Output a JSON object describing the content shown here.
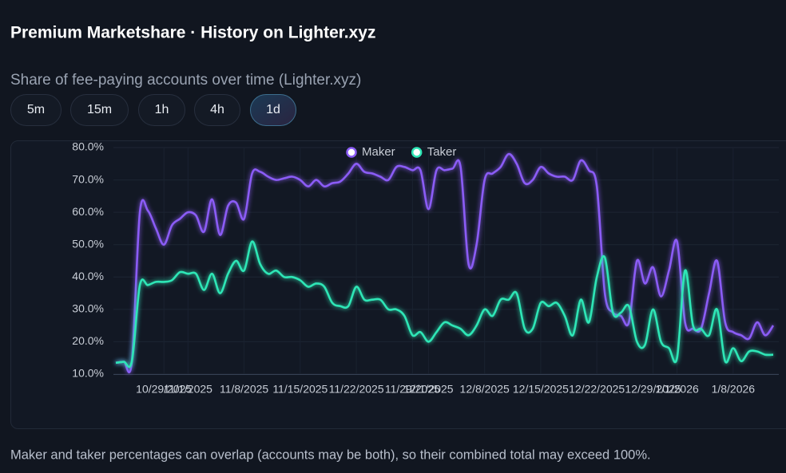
{
  "header": {
    "title": "Premium Marketshare · History on Lighter.xyz",
    "subtitle": "Share of fee-paying accounts over time (Lighter.xyz)"
  },
  "buttons": [
    "5m",
    "15m",
    "1h",
    "4h",
    "1d"
  ],
  "selected": "1d",
  "note": "Maker and taker percentages can overlap (accounts may be both), so their combined total may exceed 100%.",
  "chart_data": {
    "type": "line",
    "x": [
      "10/23/2025",
      "10/24/2025",
      "10/25/2025",
      "10/26/2025",
      "10/27/2025",
      "10/28/2025",
      "10/29/2025",
      "10/30/2025",
      "10/31/2025",
      "11/1/2025",
      "11/2/2025",
      "11/3/2025",
      "11/4/2025",
      "11/5/2025",
      "11/6/2025",
      "11/7/2025",
      "11/8/2025",
      "11/9/2025",
      "11/10/2025",
      "11/11/2025",
      "11/12/2025",
      "11/13/2025",
      "11/14/2025",
      "11/15/2025",
      "11/16/2025",
      "11/17/2025",
      "11/18/2025",
      "11/19/2025",
      "11/20/2025",
      "11/21/2025",
      "11/22/2025",
      "11/23/2025",
      "11/24/2025",
      "11/25/2025",
      "11/26/2025",
      "11/27/2025",
      "11/28/2025",
      "11/29/2025",
      "11/30/2025",
      "12/1/2025",
      "12/2/2025",
      "12/3/2025",
      "12/4/2025",
      "12/5/2025",
      "12/6/2025",
      "12/7/2025",
      "12/8/2025",
      "12/9/2025",
      "12/10/2025",
      "12/11/2025",
      "12/12/2025",
      "12/13/2025",
      "12/14/2025",
      "12/15/2025",
      "12/16/2025",
      "12/17/2025",
      "12/18/2025",
      "12/19/2025",
      "12/20/2025",
      "12/21/2025",
      "12/22/2025",
      "12/23/2025",
      "12/24/2025",
      "12/25/2025",
      "12/26/2025",
      "12/27/2025",
      "12/28/2025",
      "12/29/2025",
      "12/30/2025",
      "12/31/2025",
      "1/1/2026",
      "1/2/2026",
      "1/3/2026",
      "1/4/2026",
      "1/5/2026",
      "1/6/2026",
      "1/7/2026",
      "1/8/2026",
      "1/9/2026",
      "1/10/2026",
      "1/11/2026",
      "1/12/2026",
      "1/13/2026"
    ],
    "series": [
      {
        "name": "Maker",
        "color": "#8b5cf6",
        "values": [
          13.5,
          13.8,
          14,
          60,
          60.5,
          55,
          50,
          56,
          58,
          60,
          59,
          54,
          64,
          53,
          62,
          63,
          58,
          72,
          72.5,
          71,
          70,
          70.5,
          71,
          70,
          68,
          70,
          68,
          69,
          69.5,
          72,
          75,
          72.5,
          72,
          71,
          70,
          74,
          74,
          73,
          73,
          61,
          73,
          73,
          73.5,
          74,
          44,
          50,
          70,
          72,
          74,
          78,
          75,
          69,
          70,
          74,
          72,
          71,
          71,
          70,
          76,
          73,
          68,
          35,
          29,
          28,
          26,
          45,
          38,
          43,
          34,
          42,
          51,
          26,
          24,
          24,
          35,
          45,
          26,
          23,
          22,
          21,
          26,
          22,
          25
        ]
      },
      {
        "name": "Taker",
        "color": "#2ee6b6",
        "values": [
          13.5,
          13.8,
          14,
          37.5,
          37.5,
          38.5,
          38.5,
          39,
          41.5,
          41,
          41,
          36,
          41,
          35,
          41,
          45,
          42,
          51,
          44,
          41,
          42,
          40,
          40,
          39,
          37,
          38,
          37,
          32,
          31,
          31,
          37,
          33,
          33,
          33,
          30,
          30,
          28,
          22,
          23,
          20,
          23,
          26,
          25,
          24,
          22,
          25,
          30,
          28,
          33,
          33,
          35,
          24,
          24,
          32,
          31,
          32,
          28,
          22,
          33,
          26,
          40,
          46,
          29,
          29,
          31,
          20,
          19,
          30,
          20,
          18,
          15,
          42,
          25,
          24,
          22,
          30,
          14,
          18,
          14,
          17,
          17,
          16,
          16
        ]
      }
    ],
    "xlim": [
      "10/23/2025",
      "1/13/2026"
    ],
    "xticks": [
      "10/29/2025",
      "11/1/2025",
      "11/8/2025",
      "11/15/2025",
      "11/22/2025",
      "11/29/2025",
      "12/1/2025",
      "12/8/2025",
      "12/15/2025",
      "12/22/2025",
      "12/29/2025",
      "1/1/2026",
      "1/8/2026"
    ],
    "ylim": [
      10,
      80
    ],
    "yticks": [
      {
        "value": 10,
        "label": "10.0%"
      },
      {
        "value": 20,
        "label": "20.0%"
      },
      {
        "value": 30,
        "label": "30.0%"
      },
      {
        "value": 40,
        "label": "40.0%"
      },
      {
        "value": 50,
        "label": "50.0%"
      },
      {
        "value": 60,
        "label": "60.0%"
      },
      {
        "value": 70,
        "label": "70.0%"
      },
      {
        "value": 80,
        "label": "80.0%"
      }
    ],
    "grid": true,
    "legend": "top"
  }
}
